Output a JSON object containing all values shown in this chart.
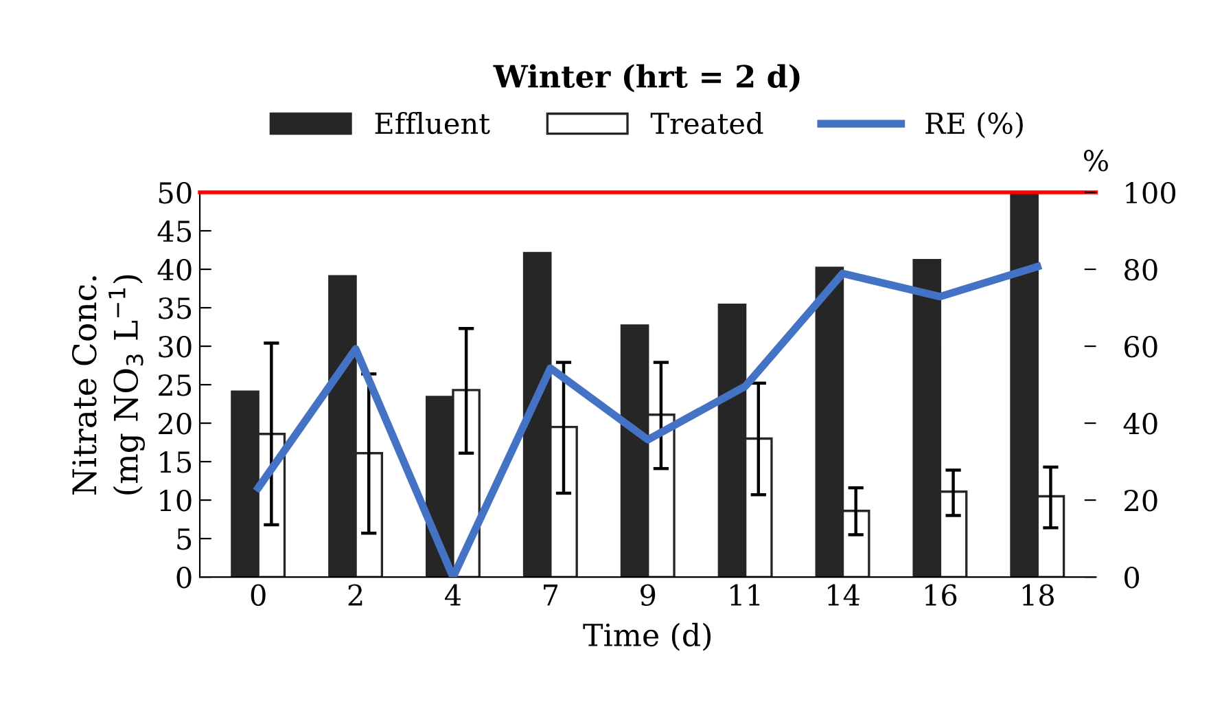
{
  "chart_data": {
    "type": "bar",
    "title": "Winter (hrt = 2 d)",
    "xlabel": "Time (d)",
    "ylabel": "Nitrate Conc.\n(mg NO$_{3}$ L$^{−1}$)",
    "y2label": "%",
    "categories": [
      "0",
      "2",
      "4",
      "7",
      "9",
      "11",
      "14",
      "16",
      "18"
    ],
    "series": [
      {
        "name": "Effluent",
        "color": "#262626",
        "values": [
          24.1,
          39.1,
          23.4,
          42.1,
          32.7,
          35.4,
          40.2,
          41.2,
          50
        ]
      },
      {
        "name": "Treated",
        "color": "#ffffff",
        "values": [
          18.6,
          16.1,
          24.3,
          19.5,
          21.1,
          18.0,
          8.6,
          11.1,
          10.5
        ],
        "errors": [
          [
            6.8,
            30.4
          ],
          [
            5.7,
            26.4
          ],
          [
            16.1,
            32.3
          ],
          [
            10.9,
            27.9
          ],
          [
            14.1,
            27.9
          ],
          [
            10.7,
            25.2
          ],
          [
            5.5,
            11.6
          ],
          [
            8.0,
            13.9
          ],
          [
            6.4,
            14.3
          ]
        ]
      },
      {
        "name": "RE (%)",
        "type": "line",
        "axis": "y2",
        "color": "#4472c4",
        "values": [
          23.2,
          59.3,
          0,
          54.3,
          35.7,
          49.6,
          78.9,
          72.9,
          80.7
        ]
      }
    ],
    "ylim": [
      0,
      50
    ],
    "yticks": [
      0,
      5,
      10,
      15,
      20,
      25,
      30,
      35,
      40,
      45,
      50
    ],
    "y2lim": [
      0,
      100
    ],
    "y2ticks": [
      0,
      20,
      40,
      60,
      80,
      100
    ],
    "ref_lines": [
      {
        "axis": "y",
        "value": 50,
        "color": "#ff0000"
      }
    ],
    "grid": false,
    "legend": "top",
    "marker": "none",
    "line_style": "solid"
  }
}
